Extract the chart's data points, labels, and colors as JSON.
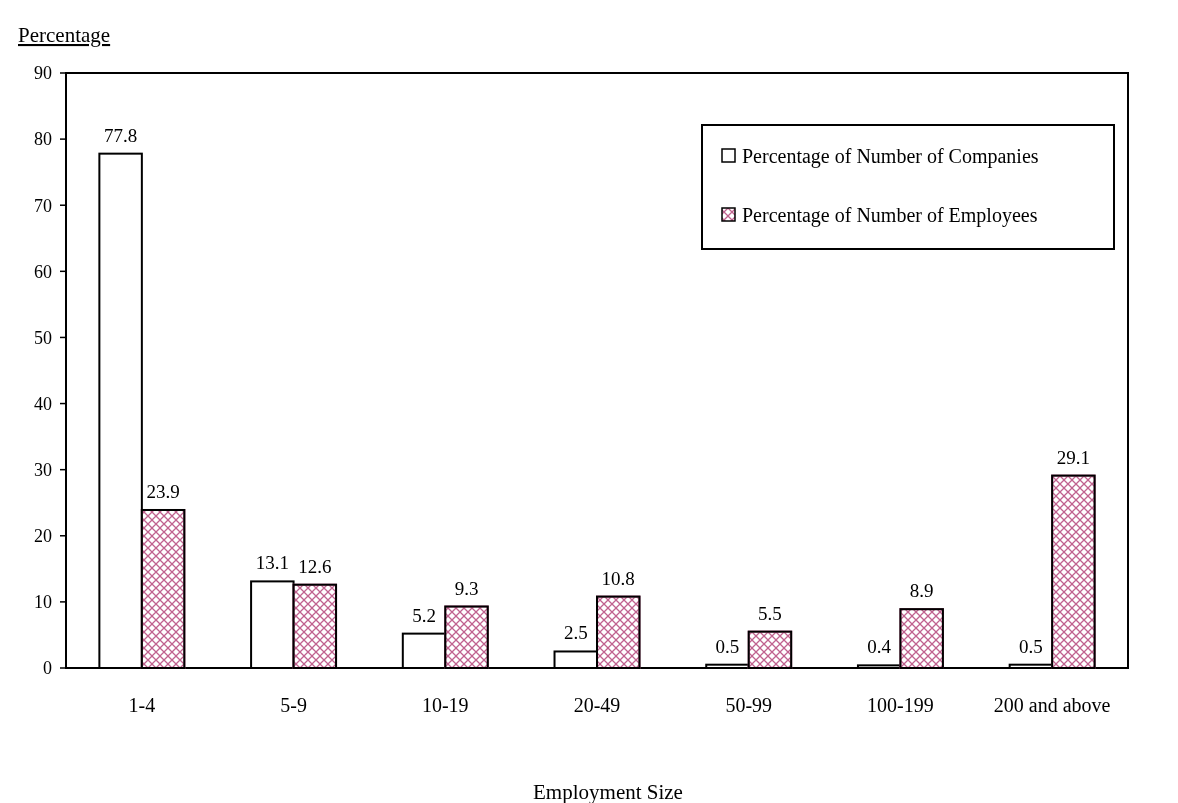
{
  "chart_data": {
    "type": "bar",
    "xlabel": "Employment Size",
    "ylabel": "Percentage",
    "categories": [
      "1-4",
      "5-9",
      "10-19",
      "20-49",
      "50-99",
      "100-199",
      "200 and above"
    ],
    "series": [
      {
        "name": "Percentage of Number of Companies",
        "color": "#ffffff",
        "values": [
          77.8,
          13.1,
          5.2,
          2.5,
          0.5,
          0.4,
          0.5
        ]
      },
      {
        "name": "Percentage of Number of Employees",
        "color": "#c0628f",
        "values": [
          23.9,
          12.6,
          9.3,
          10.8,
          5.5,
          8.9,
          29.1
        ]
      }
    ],
    "ylim": [
      0,
      90
    ],
    "yticks": [
      0,
      10,
      20,
      30,
      40,
      50,
      60,
      70,
      80,
      90
    ],
    "data_labels": true,
    "legend": "top right",
    "grid": false
  }
}
